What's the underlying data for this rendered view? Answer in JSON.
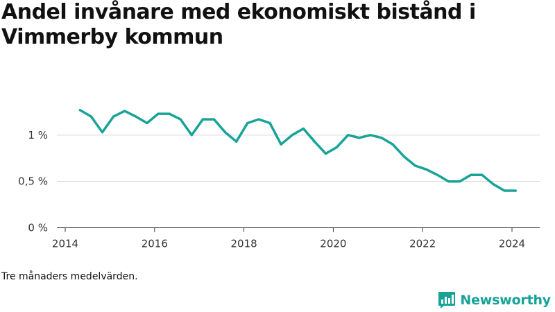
{
  "title": "Andel invånare med ekonomiskt bistånd i Vimmerby kommun",
  "note": "Tre månaders medelvärden.",
  "brand": {
    "name": "Newsworthy",
    "icon": "bar-chart-speech-bubble-icon",
    "color": "#17a398"
  },
  "chart_data": {
    "type": "line",
    "title": "Andel invånare med ekonomiskt bistånd i Vimmerby kommun",
    "xlabel": "",
    "ylabel": "",
    "x_ticks": [
      "2014",
      "2016",
      "2018",
      "2020",
      "2022",
      "2024"
    ],
    "y_ticks": [
      {
        "value": 0,
        "label": "0 %"
      },
      {
        "value": 0.5,
        "label": "0,5 %"
      },
      {
        "value": 1,
        "label": "1 %"
      }
    ],
    "xlim": [
      2014,
      2024.6
    ],
    "ylim": [
      0,
      1.5
    ],
    "grid": "horizontal",
    "series": [
      {
        "color": "#17a398",
        "points": [
          [
            2014.33,
            1.27
          ],
          [
            2014.58,
            1.2
          ],
          [
            2014.83,
            1.03
          ],
          [
            2015.08,
            1.2
          ],
          [
            2015.33,
            1.26
          ],
          [
            2015.58,
            1.2
          ],
          [
            2015.83,
            1.13
          ],
          [
            2016.08,
            1.23
          ],
          [
            2016.33,
            1.23
          ],
          [
            2016.58,
            1.17
          ],
          [
            2016.83,
            1.0
          ],
          [
            2017.08,
            1.17
          ],
          [
            2017.33,
            1.17
          ],
          [
            2017.58,
            1.03
          ],
          [
            2017.83,
            0.93
          ],
          [
            2018.08,
            1.13
          ],
          [
            2018.33,
            1.17
          ],
          [
            2018.58,
            1.13
          ],
          [
            2018.83,
            0.9
          ],
          [
            2019.08,
            1.0
          ],
          [
            2019.33,
            1.07
          ],
          [
            2019.58,
            0.93
          ],
          [
            2019.83,
            0.8
          ],
          [
            2020.08,
            0.87
          ],
          [
            2020.33,
            1.0
          ],
          [
            2020.58,
            0.97
          ],
          [
            2020.83,
            1.0
          ],
          [
            2021.08,
            0.97
          ],
          [
            2021.33,
            0.9
          ],
          [
            2021.58,
            0.77
          ],
          [
            2021.83,
            0.67
          ],
          [
            2022.08,
            0.63
          ],
          [
            2022.33,
            0.57
          ],
          [
            2022.58,
            0.5
          ],
          [
            2022.83,
            0.5
          ],
          [
            2023.08,
            0.57
          ],
          [
            2023.33,
            0.57
          ],
          [
            2023.58,
            0.47
          ],
          [
            2023.83,
            0.4
          ],
          [
            2024.08,
            0.4
          ]
        ]
      }
    ]
  }
}
